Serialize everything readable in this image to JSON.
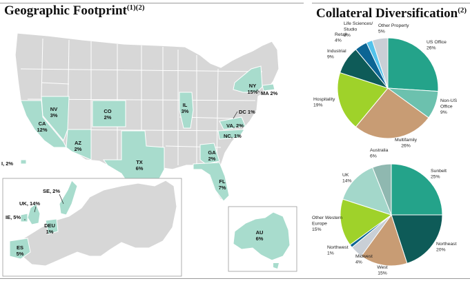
{
  "geo": {
    "title": "Geographic Footprint",
    "superscript": "(1)(2)",
    "us_labels": [
      {
        "code": "CA",
        "pct": "12%"
      },
      {
        "code": "NV",
        "pct": "3%"
      },
      {
        "code": "AZ",
        "pct": "2%"
      },
      {
        "code": "CO",
        "pct": "2%"
      },
      {
        "code": "TX",
        "pct": "6%"
      },
      {
        "code": "IL",
        "pct": "3%"
      },
      {
        "code": "NY",
        "pct": "15%"
      },
      {
        "code": "GA",
        "pct": "2%"
      },
      {
        "code": "FL",
        "pct": "7%"
      }
    ],
    "us_inline_labels": [
      {
        "text": "MA 2%"
      },
      {
        "text": "DC 1%"
      },
      {
        "text": "VA, 2%"
      },
      {
        "text": "NC, 1%"
      },
      {
        "text": "I, 2%"
      }
    ],
    "europe_labels": [
      {
        "text": "SE, 2%"
      },
      {
        "text": "UK, 14%"
      },
      {
        "text": "IE, 5%"
      },
      {
        "code": "DEU",
        "pct": "1%"
      },
      {
        "code": "ES",
        "pct": "5%"
      }
    ],
    "australia_label": {
      "code": "AU",
      "pct": "6%"
    }
  },
  "collateral": {
    "title": "Collateral Diversification",
    "superscript": "(2)"
  },
  "chart_data": [
    {
      "type": "pie",
      "title": "",
      "slices": [
        {
          "label": "US Office",
          "value": 26,
          "display": "26%",
          "color": "#24a38a"
        },
        {
          "label": "Non-US Office",
          "value": 9,
          "display": "9%",
          "color": "#6cc1ae"
        },
        {
          "label": "Multifamily",
          "value": 26,
          "display": "26%",
          "color": "#c89c74"
        },
        {
          "label": "Hospitality",
          "value": 19,
          "display": "19%",
          "color": "#9fd22a"
        },
        {
          "label": "Industrial",
          "value": 9,
          "display": "9%",
          "color": "#0e5b58"
        },
        {
          "label": "Retail",
          "value": 4,
          "display": "4%",
          "color": "#0c6594"
        },
        {
          "label": "Life Sciences/ Studio",
          "value": 2,
          "display": "2%",
          "color": "#53c2ea"
        },
        {
          "label": "Other Property",
          "value": 5,
          "display": "5%",
          "color": "#c9cfd6"
        }
      ]
    },
    {
      "type": "pie",
      "title": "",
      "slices": [
        {
          "label": "Sunbelt",
          "value": 25,
          "display": "25%",
          "color": "#24a38a"
        },
        {
          "label": "Northeast",
          "value": 20,
          "display": "20%",
          "color": "#0e5b58"
        },
        {
          "label": "West",
          "value": 15,
          "display": "15%",
          "color": "#c89c74"
        },
        {
          "label": "Midwest",
          "value": 4,
          "display": "4%",
          "color": "#c9cfd6"
        },
        {
          "label": "Northwest",
          "value": 1,
          "display": "1%",
          "color": "#0c6594"
        },
        {
          "label": "Other Western Europe",
          "value": 15,
          "display": "15%",
          "color": "#9fd22a"
        },
        {
          "label": "UK",
          "value": 14,
          "display": "14%",
          "color": "#a3d7ca"
        },
        {
          "label": "Australia",
          "value": 6,
          "display": "6%",
          "color": "#8fb8b0"
        }
      ]
    }
  ]
}
